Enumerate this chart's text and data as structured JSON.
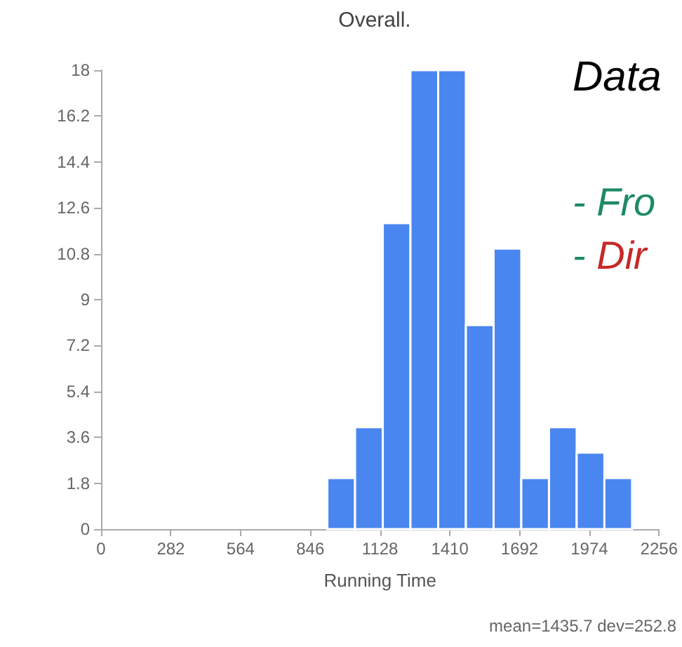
{
  "chart_data": {
    "type": "histogram",
    "title": "Overall.",
    "xlabel": "Running Time",
    "bins": [
      915,
      1027,
      1139,
      1251,
      1363,
      1475,
      1587,
      1699,
      1811,
      1923,
      2035,
      2147
    ],
    "values": [
      2,
      4,
      12,
      18,
      18,
      8,
      11,
      2,
      4,
      3,
      2
    ],
    "color": "#4a86f0",
    "xlim": [
      0,
      2256
    ],
    "xticks": [
      0,
      282,
      564,
      846,
      1128,
      1410,
      1692,
      1974,
      2256
    ],
    "ylim": [
      0,
      18
    ],
    "yticks": [
      0,
      1.8,
      3.6,
      5.4,
      7.2,
      9,
      10.8,
      12.6,
      14.4,
      16.2,
      18
    ],
    "grid": false,
    "annotations": [
      "Data",
      "- Fro",
      "- Dir",
      "mean=1435.7 dev=252.8"
    ]
  }
}
